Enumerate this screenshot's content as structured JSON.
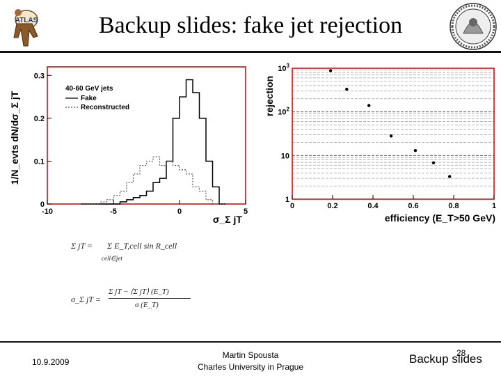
{
  "title": "Backup slides: fake jet rejection",
  "footer": {
    "date": "10.9.2009",
    "author_line1": "Martin Spousta",
    "author_line2": "Charles University in Prague",
    "section": "Backup slides",
    "page_number": "28"
  },
  "logos": {
    "left": "ATLAS",
    "right": "university seal"
  },
  "chart_data": [
    {
      "type": "line",
      "ylabel": "1/N_evts dN/dσ_Σ jT",
      "xlabel": "σ_Σ jT",
      "annotation": "40-60 GeV jets",
      "legend_placement": "top-left",
      "x_range": [
        -10,
        5
      ],
      "y_range": [
        0,
        0.32
      ],
      "x_tick_labels": [
        "-10",
        "-5",
        "0",
        "5"
      ],
      "y_tick_labels": [
        "0",
        "0.1",
        "0.2",
        "0.3"
      ],
      "x_ticks": [
        -10,
        -5,
        0,
        5
      ],
      "y_ticks": [
        0,
        0.1,
        0.2,
        0.3
      ],
      "bin_edges": [
        -7.5,
        -7,
        -6.5,
        -6,
        -5.5,
        -5,
        -4.5,
        -4,
        -3.5,
        -3,
        -2.5,
        -2,
        -1.5,
        -1,
        -0.5,
        0,
        0.5,
        1,
        1.5,
        2,
        2.5,
        3,
        3.5
      ],
      "series": [
        {
          "name": "Fake",
          "style": "solid",
          "color": "#000000",
          "values": [
            0,
            0,
            0,
            0,
            0,
            0,
            0.005,
            0.01,
            0.015,
            0.02,
            0.03,
            0.05,
            0.06,
            0.1,
            0.2,
            0.25,
            0.29,
            0.26,
            0.2,
            0.1,
            0.04,
            0,
            0
          ]
        },
        {
          "name": "Reconstructed",
          "style": "dotted",
          "color": "#555555",
          "values": [
            0,
            0,
            0,
            0.005,
            0.01,
            0.02,
            0.03,
            0.05,
            0.07,
            0.09,
            0.1,
            0.11,
            0.09,
            0.1,
            0.09,
            0.08,
            0.07,
            0.04,
            0.03,
            0.01,
            0,
            0,
            0
          ]
        }
      ],
      "frame_color": "#cc0000"
    },
    {
      "type": "scatter",
      "ylabel": "rejection",
      "xlabel": "efficiency (E_T>50 GeV)",
      "y_scale": "log",
      "x_range": [
        0,
        1
      ],
      "y_range": [
        1,
        1000
      ],
      "grid": true,
      "x_tick_labels": [
        "0",
        "0.2",
        "0.4",
        "0.6",
        "0.8",
        "1"
      ],
      "y_tick_labels": [
        "1",
        "10",
        "10^2",
        "10^3"
      ],
      "x_ticks": [
        0,
        0.2,
        0.4,
        0.6,
        0.8,
        1
      ],
      "y_ticks": [
        1,
        10,
        100,
        1000
      ],
      "x": [
        0.19,
        0.27,
        0.38,
        0.49,
        0.61,
        0.7,
        0.78
      ],
      "y": [
        880,
        330,
        140,
        28,
        13,
        6.8,
        3.3
      ],
      "frame_color": "#cc0000"
    }
  ],
  "formulas": {
    "f1_lhs": "Σ jT =",
    "f1_rhs": "Σ E_T,cell sin R_cell",
    "f1_sub": "cell∈jet",
    "f2_lhs": "σ_Σ jT =",
    "f2_num": "Σ jT − ⟨Σ jT⟩ (E_T)",
    "f2_den": "σ (E_T)"
  }
}
